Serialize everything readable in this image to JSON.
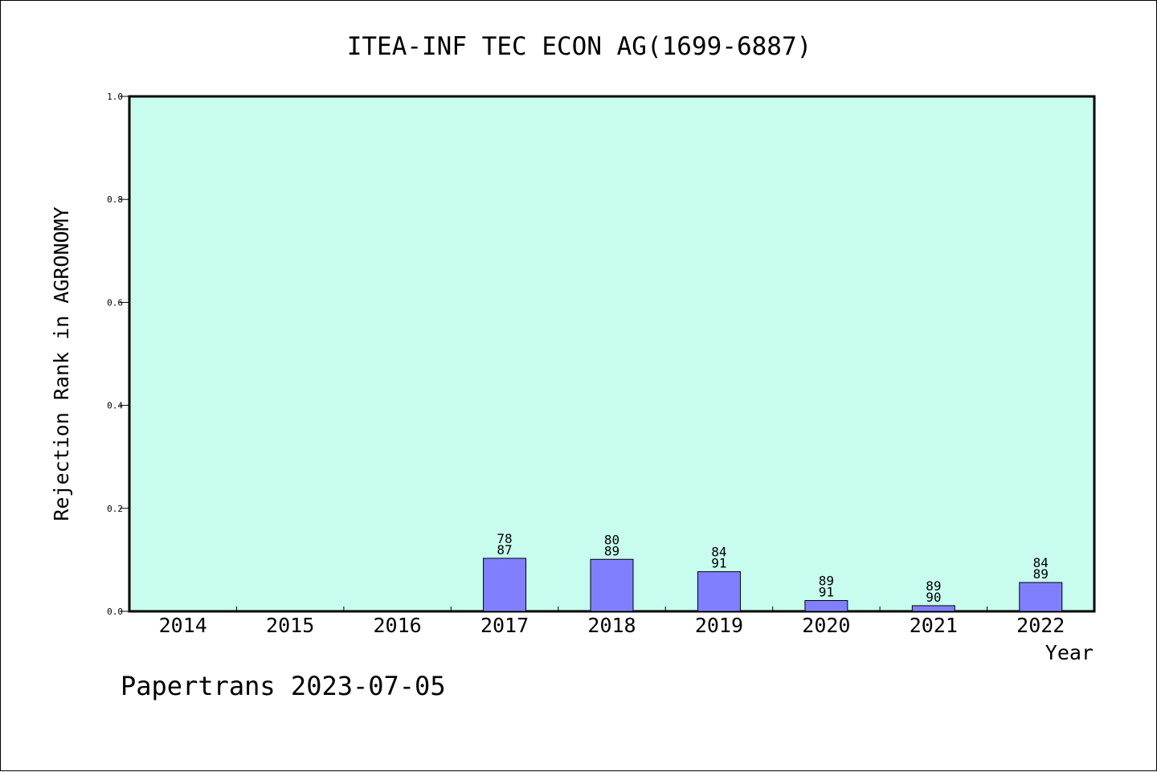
{
  "chart_data": {
    "type": "bar",
    "title": "ITEA-INF TEC ECON AG(1699-6887)",
    "xlabel": "Year",
    "ylabel": "Rejection Rank in AGRONOMY",
    "ylim": [
      0,
      1.0
    ],
    "yticks": [
      "0.0",
      "0.2",
      "0.4",
      "0.6",
      "0.8",
      "1.0"
    ],
    "categories": [
      "2014",
      "2015",
      "2016",
      "2017",
      "2018",
      "2019",
      "2020",
      "2021",
      "2022"
    ],
    "values": [
      null,
      null,
      null,
      0.103,
      0.101,
      0.077,
      0.021,
      0.011,
      0.056
    ],
    "labels_top": [
      "",
      "",
      "",
      "78",
      "80",
      "84",
      "89",
      "89",
      "84"
    ],
    "labels_bottom": [
      "",
      "",
      "",
      "87",
      "89",
      "91",
      "91",
      "90",
      "89"
    ],
    "grid": false,
    "colors": {
      "plot_background": "#c8fcee",
      "bar_fill": "#8080ff",
      "bar_stroke": "#000000"
    }
  },
  "footer": "Papertrans 2023-07-05"
}
